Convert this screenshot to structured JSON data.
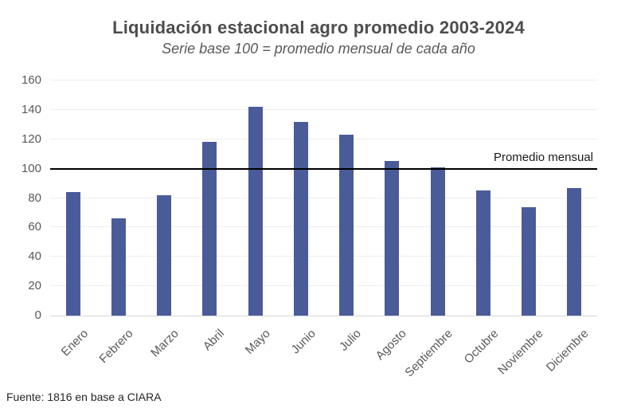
{
  "chart_data": {
    "type": "bar",
    "title": "Liquidación estacional agro promedio 2003-2024",
    "subtitle": "Serie base 100 = promedio mensual de cada año",
    "categories": [
      "Enero",
      "Febrero",
      "Marzo",
      "Abril",
      "Mayo",
      "Junio",
      "Julio",
      "Agosto",
      "Septiembre",
      "Octubre",
      "Noviembre",
      "Diciembre"
    ],
    "values": [
      84,
      66,
      82,
      118,
      142,
      132,
      123,
      105,
      101,
      85,
      74,
      87
    ],
    "xlabel": "",
    "ylabel": "",
    "ylim": [
      0,
      160
    ],
    "yticks": [
      160,
      140,
      120,
      100,
      80,
      60,
      40,
      20,
      0
    ],
    "grid": "horizontal",
    "legend": "none",
    "bar_color": "#4a5b9a",
    "reference_line": {
      "value": 100,
      "label": "Promedio mensual",
      "color": "#000000"
    },
    "source": "Fuente: 1816 en base a CIARA"
  }
}
